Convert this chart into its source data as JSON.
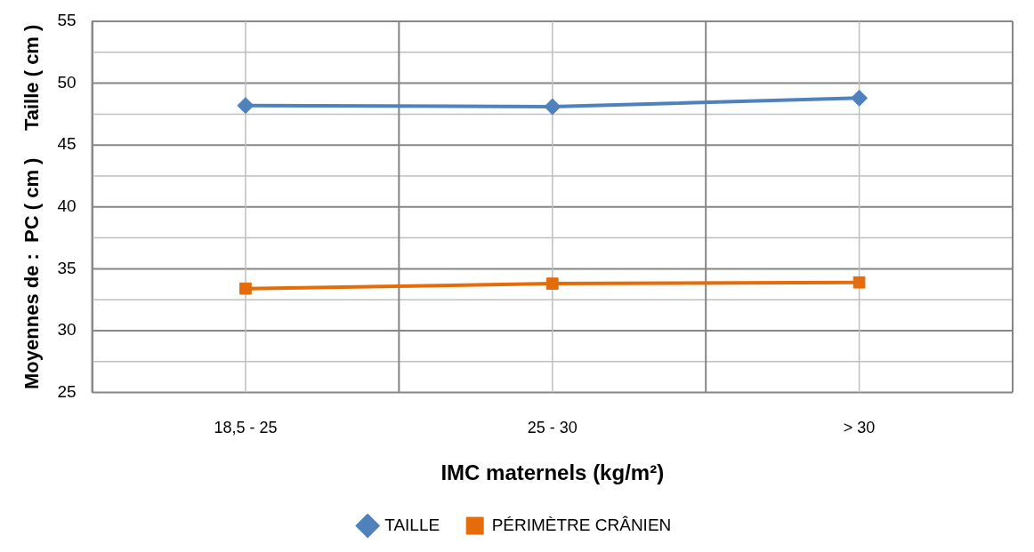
{
  "chart_data": {
    "type": "line",
    "xlabel": "IMC maternels (kg/m²)",
    "ylabel": "Moyennes de :  PC ( cm )     Taille ( cm )",
    "categories": [
      "18,5 - 25",
      "25 - 30",
      "> 30"
    ],
    "series": [
      {
        "name": "TAILLE",
        "color": "#4f81bd",
        "marker": "diamond",
        "values": [
          48.2,
          48.1,
          48.8
        ]
      },
      {
        "name": "PÉRIMÈTRE CRÂNIEN",
        "color": "#e46c0a",
        "marker": "square",
        "values": [
          33.4,
          33.8,
          33.9
        ]
      }
    ],
    "ylim": [
      25,
      55
    ],
    "yticks": [
      25,
      30,
      35,
      40,
      45,
      50,
      55
    ],
    "grid": true,
    "legend": "bottom",
    "line_style": "solid"
  }
}
